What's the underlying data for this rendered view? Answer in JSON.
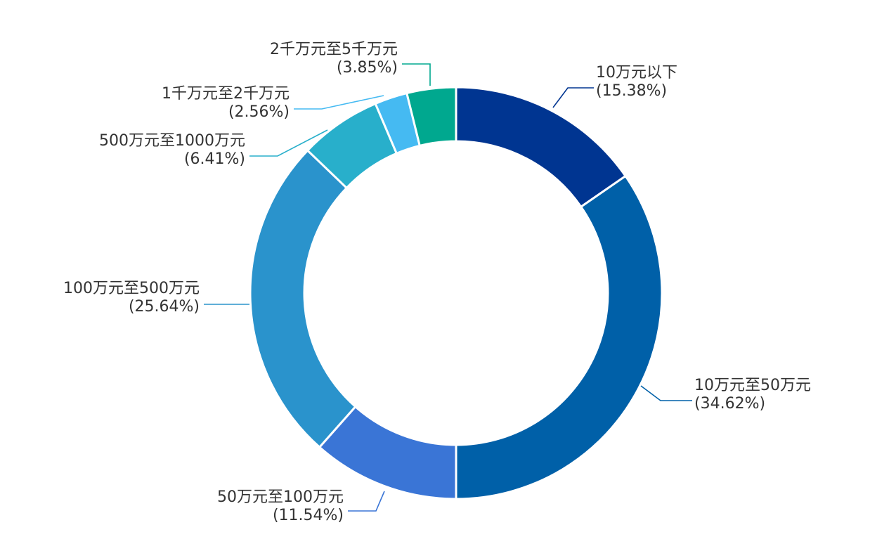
{
  "chart_data": {
    "type": "pie",
    "variant": "donut",
    "title": "",
    "legend": "none",
    "slices": [
      {
        "label": "10万元以下",
        "percent_label": "(15.38%)",
        "value": 15.38,
        "color": "#003591"
      },
      {
        "label": "10万元至50万元",
        "percent_label": "(34.62%)",
        "value": 34.62,
        "color": "#0060A8"
      },
      {
        "label": "50万元至100万元",
        "percent_label": "(11.54%)",
        "value": 11.54,
        "color": "#3A75D6"
      },
      {
        "label": "100万元至500万元",
        "percent_label": "(25.64%)",
        "value": 25.64,
        "color": "#2A93CC"
      },
      {
        "label": "500万元至1000万元",
        "percent_label": "(6.41%)",
        "value": 6.41,
        "color": "#28AFCB"
      },
      {
        "label": "1千万元至2千万元",
        "percent_label": "(2.56%)",
        "value": 2.56,
        "color": "#45BAF2"
      },
      {
        "label": "2千万元至5千万元",
        "percent_label": "(3.85%)",
        "value": 3.85,
        "color": "#00A88F"
      }
    ]
  }
}
